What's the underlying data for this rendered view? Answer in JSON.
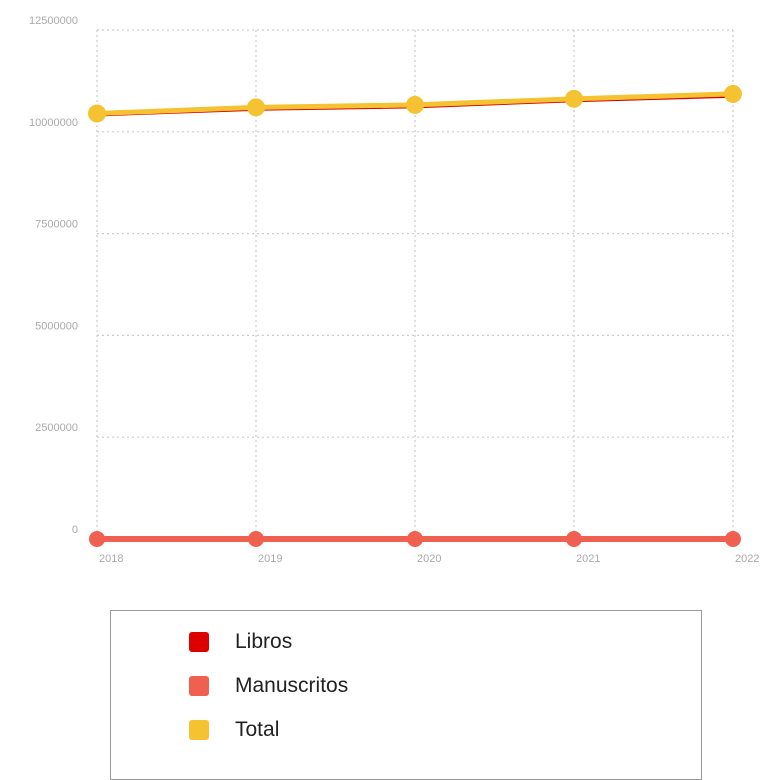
{
  "chart_data": {
    "type": "line",
    "x": [
      "2018",
      "2019",
      "2020",
      "2021",
      "2022"
    ],
    "yticks": [
      "12500000",
      "10000000",
      "7500000",
      "5000000",
      "2500000",
      "0"
    ],
    "ylim": [
      0,
      12500000
    ],
    "grid": true,
    "legend_position": "bottom",
    "series": [
      {
        "name": "Libros",
        "color": "#dd0000",
        "values": [
          10400000,
          10540000,
          10600000,
          10750000,
          10860000
        ]
      },
      {
        "name": "Manuscritos",
        "color": "#f06050",
        "values": [
          0,
          0,
          0,
          0,
          0
        ]
      },
      {
        "name": "Total",
        "color": "#f5c231",
        "values": [
          10450000,
          10600000,
          10660000,
          10810000,
          10930000
        ]
      }
    ]
  }
}
